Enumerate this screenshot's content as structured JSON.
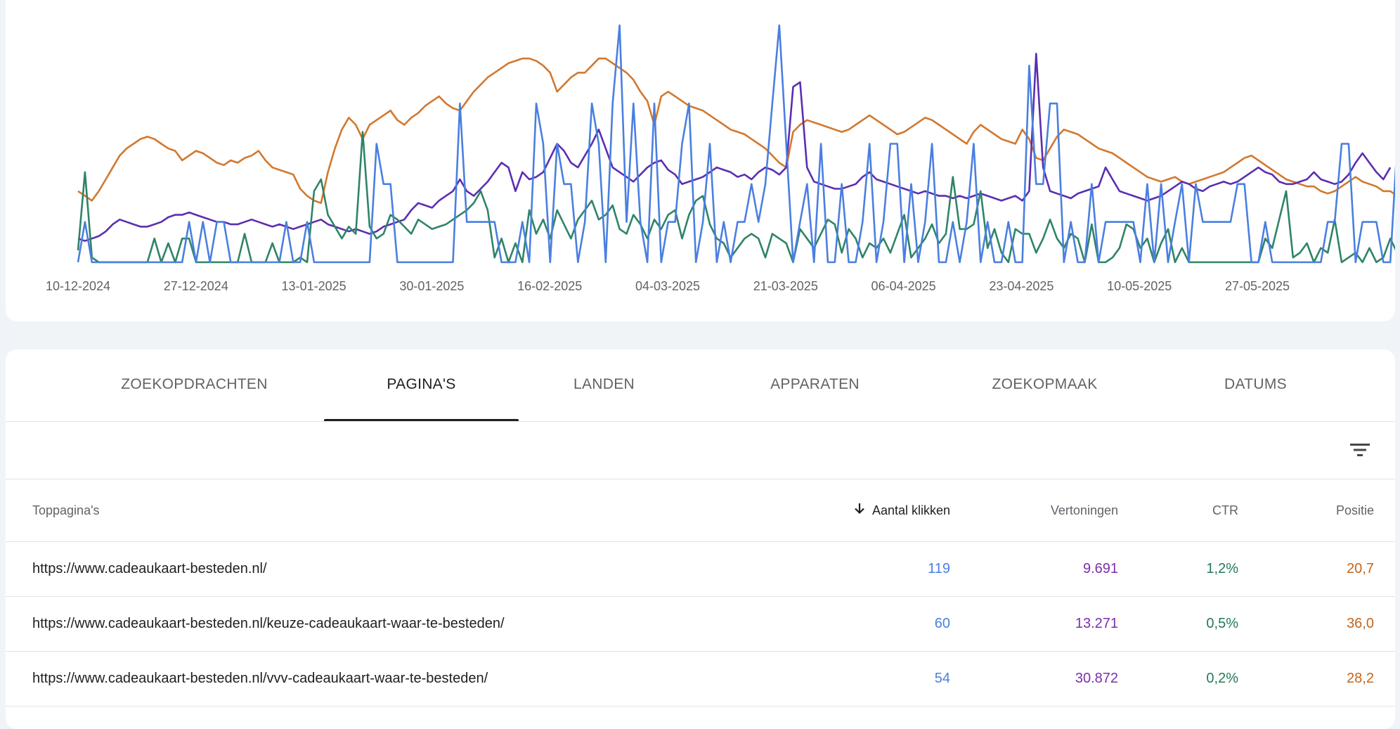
{
  "colors": {
    "clicks": "#4a7fe0",
    "impressions": "#5b2eb0",
    "ctr": "#2f8466",
    "position": "#d2782f"
  },
  "chart_data": {
    "type": "line",
    "x_tick_labels": [
      "10-12-2024",
      "27-12-2024",
      "13-01-2025",
      "30-01-2025",
      "16-02-2025",
      "04-03-2025",
      "21-03-2025",
      "06-04-2025",
      "23-04-2025",
      "10-05-2025",
      "27-05-2025"
    ],
    "x_start": "10-12-2024",
    "points_per_series": 183,
    "series": [
      {
        "key": "position",
        "values": [
          0.3,
          0.28,
          0.26,
          0.3,
          0.35,
          0.4,
          0.45,
          0.48,
          0.5,
          0.52,
          0.53,
          0.52,
          0.5,
          0.48,
          0.47,
          0.43,
          0.45,
          0.47,
          0.46,
          0.44,
          0.42,
          0.41,
          0.43,
          0.42,
          0.44,
          0.45,
          0.47,
          0.43,
          0.4,
          0.39,
          0.38,
          0.37,
          0.31,
          0.28,
          0.26,
          0.25,
          0.38,
          0.48,
          0.56,
          0.61,
          0.58,
          0.52,
          0.58,
          0.6,
          0.62,
          0.64,
          0.6,
          0.58,
          0.61,
          0.63,
          0.66,
          0.68,
          0.7,
          0.67,
          0.65,
          0.64,
          0.68,
          0.72,
          0.75,
          0.78,
          0.8,
          0.82,
          0.84,
          0.85,
          0.86,
          0.86,
          0.85,
          0.83,
          0.8,
          0.72,
          0.75,
          0.78,
          0.8,
          0.8,
          0.83,
          0.86,
          0.86,
          0.84,
          0.82,
          0.8,
          0.77,
          0.72,
          0.68,
          0.58,
          0.7,
          0.72,
          0.7,
          0.68,
          0.66,
          0.65,
          0.64,
          0.62,
          0.6,
          0.58,
          0.56,
          0.55,
          0.54,
          0.52,
          0.5,
          0.48,
          0.45,
          0.42,
          0.4,
          0.55,
          0.58,
          0.6,
          0.59,
          0.58,
          0.57,
          0.56,
          0.55,
          0.56,
          0.58,
          0.6,
          0.62,
          0.6,
          0.58,
          0.56,
          0.54,
          0.55,
          0.57,
          0.59,
          0.61,
          0.6,
          0.58,
          0.56,
          0.54,
          0.52,
          0.5,
          0.55,
          0.58,
          0.56,
          0.54,
          0.52,
          0.51,
          0.5,
          0.56,
          0.52,
          0.44,
          0.43,
          0.48,
          0.53,
          0.56,
          0.55,
          0.54,
          0.52,
          0.5,
          0.48,
          0.47,
          0.46,
          0.44,
          0.42,
          0.4,
          0.38,
          0.36,
          0.35,
          0.34,
          0.35,
          0.36,
          0.34,
          0.33,
          0.34,
          0.35,
          0.36,
          0.37,
          0.38,
          0.4,
          0.42,
          0.44,
          0.45,
          0.43,
          0.41,
          0.39,
          0.37,
          0.35,
          0.34,
          0.33,
          0.32,
          0.32,
          0.3,
          0.29,
          0.3,
          0.32,
          0.34,
          0.36,
          0.34,
          0.33,
          0.32,
          0.3,
          0.3,
          0.28,
          0.27
        ]
      },
      {
        "key": "impressions",
        "values": [
          0.1,
          0.09,
          0.1,
          0.11,
          0.13,
          0.16,
          0.18,
          0.17,
          0.16,
          0.15,
          0.15,
          0.16,
          0.17,
          0.19,
          0.2,
          0.2,
          0.21,
          0.2,
          0.19,
          0.18,
          0.17,
          0.17,
          0.16,
          0.16,
          0.17,
          0.18,
          0.17,
          0.16,
          0.15,
          0.16,
          0.15,
          0.14,
          0.15,
          0.16,
          0.17,
          0.18,
          0.16,
          0.15,
          0.14,
          0.13,
          0.14,
          0.13,
          0.12,
          0.13,
          0.15,
          0.16,
          0.17,
          0.18,
          0.22,
          0.25,
          0.24,
          0.23,
          0.26,
          0.28,
          0.3,
          0.35,
          0.3,
          0.28,
          0.31,
          0.34,
          0.38,
          0.42,
          0.4,
          0.3,
          0.38,
          0.35,
          0.36,
          0.38,
          0.44,
          0.5,
          0.47,
          0.42,
          0.4,
          0.45,
          0.5,
          0.56,
          0.48,
          0.4,
          0.38,
          0.36,
          0.34,
          0.37,
          0.4,
          0.42,
          0.43,
          0.39,
          0.37,
          0.33,
          0.34,
          0.35,
          0.36,
          0.38,
          0.4,
          0.39,
          0.38,
          0.36,
          0.37,
          0.35,
          0.38,
          0.4,
          0.39,
          0.37,
          0.4,
          0.74,
          0.76,
          0.4,
          0.34,
          0.33,
          0.32,
          0.31,
          0.31,
          0.32,
          0.33,
          0.36,
          0.38,
          0.35,
          0.34,
          0.33,
          0.32,
          0.31,
          0.3,
          0.29,
          0.3,
          0.29,
          0.28,
          0.28,
          0.27,
          0.28,
          0.27,
          0.28,
          0.29,
          0.28,
          0.27,
          0.26,
          0.27,
          0.28,
          0.26,
          0.3,
          0.88,
          0.4,
          0.3,
          0.29,
          0.28,
          0.27,
          0.29,
          0.3,
          0.31,
          0.32,
          0.4,
          0.35,
          0.3,
          0.29,
          0.28,
          0.27,
          0.26,
          0.27,
          0.28,
          0.3,
          0.32,
          0.34,
          0.33,
          0.31,
          0.3,
          0.32,
          0.33,
          0.34,
          0.33,
          0.34,
          0.36,
          0.38,
          0.4,
          0.38,
          0.37,
          0.34,
          0.33,
          0.33,
          0.34,
          0.35,
          0.38,
          0.35,
          0.34,
          0.33,
          0.34,
          0.37,
          0.42,
          0.46,
          0.42,
          0.38,
          0.35,
          0.4
        ]
      },
      {
        "key": "ctr",
        "values": [
          0.05,
          0.38,
          0.02,
          0.0,
          0.0,
          0.0,
          0.0,
          0.0,
          0.0,
          0.0,
          0.0,
          0.1,
          0.0,
          0.08,
          0.0,
          0.1,
          0.1,
          0.0,
          0.0,
          0.0,
          0.0,
          0.0,
          0.0,
          0.0,
          0.12,
          0.0,
          0.0,
          0.0,
          0.08,
          0.0,
          0.0,
          0.0,
          0.02,
          0.0,
          0.3,
          0.35,
          0.2,
          0.15,
          0.1,
          0.15,
          0.12,
          0.55,
          0.15,
          0.1,
          0.12,
          0.2,
          0.18,
          0.15,
          0.12,
          0.18,
          0.16,
          0.14,
          0.15,
          0.16,
          0.18,
          0.2,
          0.22,
          0.25,
          0.3,
          0.22,
          0.02,
          0.1,
          0.0,
          0.08,
          0.0,
          0.22,
          0.12,
          0.18,
          0.1,
          0.22,
          0.16,
          0.1,
          0.18,
          0.22,
          0.26,
          0.18,
          0.2,
          0.24,
          0.14,
          0.12,
          0.2,
          0.16,
          0.1,
          0.18,
          0.14,
          0.2,
          0.22,
          0.1,
          0.2,
          0.26,
          0.28,
          0.16,
          0.1,
          0.08,
          0.02,
          0.06,
          0.1,
          0.12,
          0.1,
          0.02,
          0.12,
          0.1,
          0.08,
          0.0,
          0.14,
          0.1,
          0.06,
          0.12,
          0.18,
          0.16,
          0.04,
          0.14,
          0.1,
          0.02,
          0.08,
          0.06,
          0.1,
          0.04,
          0.12,
          0.2,
          0.02,
          0.06,
          0.1,
          0.16,
          0.08,
          0.12,
          0.36,
          0.14,
          0.14,
          0.16,
          0.3,
          0.06,
          0.14,
          0.04,
          0.0,
          0.14,
          0.12,
          0.12,
          0.04,
          0.1,
          0.18,
          0.1,
          0.06,
          0.12,
          0.1,
          0.0,
          0.16,
          0.0,
          0.0,
          0.02,
          0.06,
          0.16,
          0.14,
          0.06,
          0.1,
          0.0,
          0.08,
          0.14,
          0.0,
          0.06,
          0.0,
          0.0,
          0.0,
          0.0,
          0.0,
          0.0,
          0.0,
          0.0,
          0.0,
          0.0,
          0.0,
          0.1,
          0.06,
          0.18,
          0.3,
          0.02,
          0.04,
          0.08,
          0.0,
          0.06,
          0.04,
          0.18,
          0.0,
          0.02,
          0.04,
          0.0,
          0.06,
          0.0,
          0.02,
          0.1,
          0.04,
          0.02,
          0.0,
          0.0,
          0.0,
          0.06,
          0.0,
          0.14,
          0.02,
          0.02,
          0.0
        ]
      },
      {
        "key": "clicks",
        "values": [
          0.0,
          0.17,
          0.0,
          0.0,
          0.0,
          0.0,
          0.0,
          0.0,
          0.0,
          0.0,
          0.0,
          0.0,
          0.0,
          0.0,
          0.0,
          0.0,
          0.17,
          0.0,
          0.17,
          0.0,
          0.17,
          0.17,
          0.0,
          0.0,
          0.0,
          0.0,
          0.0,
          0.0,
          0.0,
          0.0,
          0.17,
          0.0,
          0.0,
          0.17,
          0.0,
          0.0,
          0.0,
          0.0,
          0.0,
          0.0,
          0.0,
          0.0,
          0.0,
          0.5,
          0.33,
          0.33,
          0.0,
          0.0,
          0.0,
          0.0,
          0.0,
          0.0,
          0.0,
          0.0,
          0.0,
          0.67,
          0.17,
          0.17,
          0.17,
          0.17,
          0.17,
          0.0,
          0.0,
          0.0,
          0.17,
          0.0,
          0.67,
          0.5,
          0.0,
          0.5,
          0.33,
          0.33,
          0.0,
          0.17,
          0.67,
          0.5,
          0.0,
          0.67,
          1.0,
          0.17,
          0.67,
          0.17,
          0.0,
          0.67,
          0.0,
          0.17,
          0.17,
          0.5,
          0.67,
          0.0,
          0.17,
          0.5,
          0.0,
          0.17,
          0.0,
          0.17,
          0.17,
          0.33,
          0.17,
          0.33,
          0.67,
          1.0,
          0.5,
          0.0,
          0.17,
          0.33,
          0.0,
          0.5,
          0.0,
          0.0,
          0.33,
          0.0,
          0.0,
          0.17,
          0.5,
          0.0,
          0.17,
          0.5,
          0.5,
          0.0,
          0.33,
          0.0,
          0.17,
          0.5,
          0.0,
          0.0,
          0.17,
          0.0,
          0.17,
          0.5,
          0.0,
          0.17,
          0.0,
          0.0,
          0.17,
          0.0,
          0.0,
          0.83,
          0.33,
          0.33,
          0.67,
          0.67,
          0.0,
          0.17,
          0.0,
          0.0,
          0.33,
          0.0,
          0.17,
          0.17,
          0.17,
          0.17,
          0.17,
          0.0,
          0.33,
          0.0,
          0.33,
          0.0,
          0.17,
          0.33,
          0.0,
          0.33,
          0.17,
          0.17,
          0.17,
          0.17,
          0.17,
          0.33,
          0.33,
          0.0,
          0.0,
          0.17,
          0.0,
          0.0,
          0.0,
          0.0,
          0.0,
          0.0,
          0.0,
          0.0,
          0.17,
          0.17,
          0.5,
          0.5,
          0.0,
          0.17,
          0.17,
          0.17,
          0.0,
          0.0,
          0.5,
          0.17,
          0.0,
          0.17,
          0.17,
          0.17,
          0.0,
          0.17,
          0.17,
          0.0,
          0.0,
          0.0,
          0.0,
          0.5,
          0.0,
          0.5,
          0.17,
          0.17,
          0.0
        ]
      }
    ]
  },
  "tabs": [
    {
      "label": "ZOEKOPDRACHTEN",
      "active": false
    },
    {
      "label": "PAGINA'S",
      "active": true
    },
    {
      "label": "LANDEN",
      "active": false
    },
    {
      "label": "APPARATEN",
      "active": false
    },
    {
      "label": "ZOEKOPMAAK",
      "active": false
    },
    {
      "label": "DATUMS",
      "active": false
    }
  ],
  "filter_icon": "filter-list-icon",
  "table": {
    "headers": {
      "page": "Toppagina's",
      "clicks": "Aantal klikken",
      "impressions": "Vertoningen",
      "ctr": "CTR",
      "position": "Positie"
    },
    "sort_icon": "arrow-downward-icon",
    "rows": [
      {
        "url": "https://www.cadeaukaart-besteden.nl/",
        "clicks": "119",
        "impressions": "9.691",
        "ctr": "1,2%",
        "position": "20,7"
      },
      {
        "url": "https://www.cadeaukaart-besteden.nl/keuze-cadeaukaart-waar-te-besteden/",
        "clicks": "60",
        "impressions": "13.271",
        "ctr": "0,5%",
        "position": "36,0"
      },
      {
        "url": "https://www.cadeaukaart-besteden.nl/vvv-cadeaukaart-waar-te-besteden/",
        "clicks": "54",
        "impressions": "30.872",
        "ctr": "0,2%",
        "position": "28,2"
      }
    ]
  }
}
